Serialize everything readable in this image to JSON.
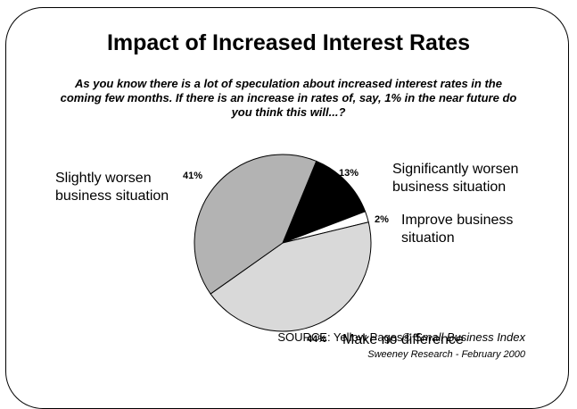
{
  "title": "Impact of Increased Interest Rates",
  "question": "As you know there is a lot of speculation about increased interest rates in the coming few months.  If there is an increase in rates of, say, 1% in the near future do you think this will...?",
  "source": {
    "prefix": "SOURCE: Yellow Pages®",
    "publication": "Small Business Index",
    "line2": "Sweeney Research - February 2000"
  },
  "chart_data": {
    "type": "pie",
    "title": "Impact of Increased Interest Rates",
    "slices": [
      {
        "label": "Significantly worsen business situation",
        "value": 13,
        "pct_label": "13%",
        "color": "#000000"
      },
      {
        "label": "Improve business situation",
        "value": 2,
        "pct_label": "2%",
        "color": "#ffffff"
      },
      {
        "label": "Make no difference",
        "value": 44,
        "pct_label": "44%",
        "color": "#d9d9d9"
      },
      {
        "label": "Slightly worsen business situation",
        "value": 41,
        "pct_label": "41%",
        "color": "#b3b3b3"
      }
    ]
  }
}
